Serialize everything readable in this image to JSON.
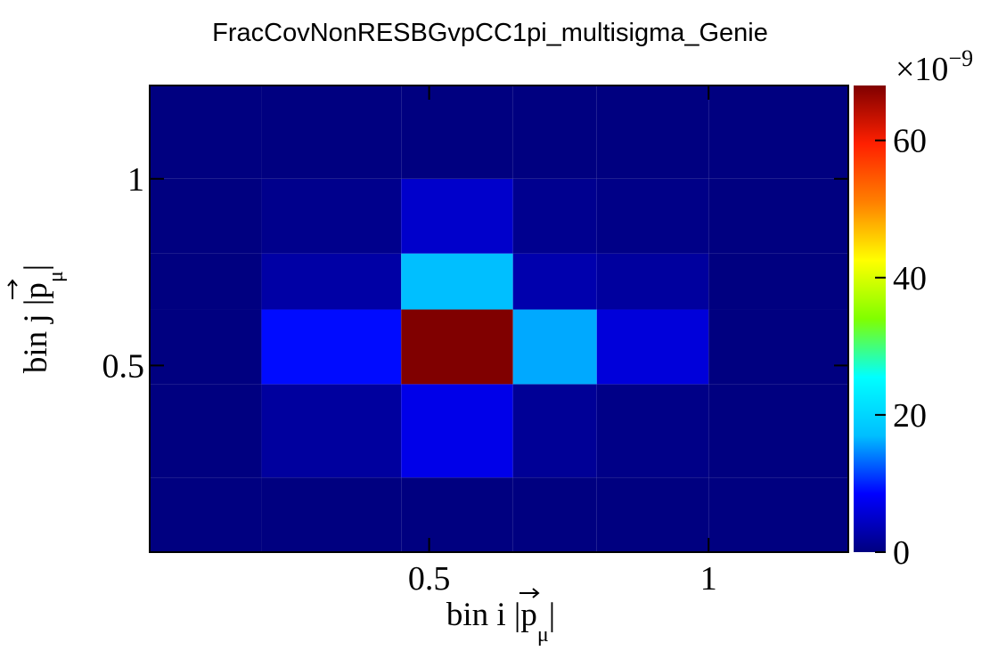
{
  "chart_data": {
    "type": "heatmap",
    "title": "FracCovNonRESBGvpCC1pi_multisigma_Genie",
    "xlabel": "bin i |p⃗μ|",
    "ylabel": "bin j |p⃗μ|",
    "xlabel_parts": {
      "prefix": "bin i ",
      "symbol": "p",
      "subscript": "μ"
    },
    "ylabel_parts": {
      "prefix": "bin j ",
      "symbol": "p",
      "subscript": "μ"
    },
    "x_edges": [
      0.0,
      0.2,
      0.45,
      0.65,
      0.8,
      1.0,
      1.25
    ],
    "y_edges": [
      0.0,
      0.2,
      0.45,
      0.65,
      0.8,
      1.0,
      1.25
    ],
    "x_range": [
      0.0,
      1.25
    ],
    "y_range": [
      0.0,
      1.25
    ],
    "x_ticks": [
      0.5,
      1
    ],
    "x_tick_labels": [
      "0.5",
      "1"
    ],
    "y_ticks": [
      0.5,
      1
    ],
    "y_tick_labels": [
      "0.5",
      "1"
    ],
    "z": [
      [
        0.0,
        0.0,
        0.0,
        0.0,
        0.0,
        0.0
      ],
      [
        0.0,
        2.0,
        7.0,
        1.5,
        0.5,
        0.0
      ],
      [
        0.0,
        9.0,
        68.0,
        16.0,
        6.0,
        0.0
      ],
      [
        0.0,
        2.5,
        17.0,
        3.0,
        2.0,
        0.0
      ],
      [
        0.0,
        0.8,
        5.0,
        1.0,
        0.5,
        0.0
      ],
      [
        0.0,
        0.0,
        0.0,
        0.0,
        0.0,
        0.0
      ]
    ],
    "z_range": [
      0,
      68
    ],
    "z_ticks": [
      0,
      20,
      40,
      60
    ],
    "z_tick_labels": [
      "0",
      "20",
      "40",
      "60"
    ],
    "z_multiplier_base": "×10",
    "z_multiplier_exp": "−9",
    "colormap": [
      "#000080",
      "#0000ff",
      "#00bfff",
      "#00ffff",
      "#80ff00",
      "#ffff00",
      "#ff8000",
      "#ff2000",
      "#800000"
    ]
  }
}
